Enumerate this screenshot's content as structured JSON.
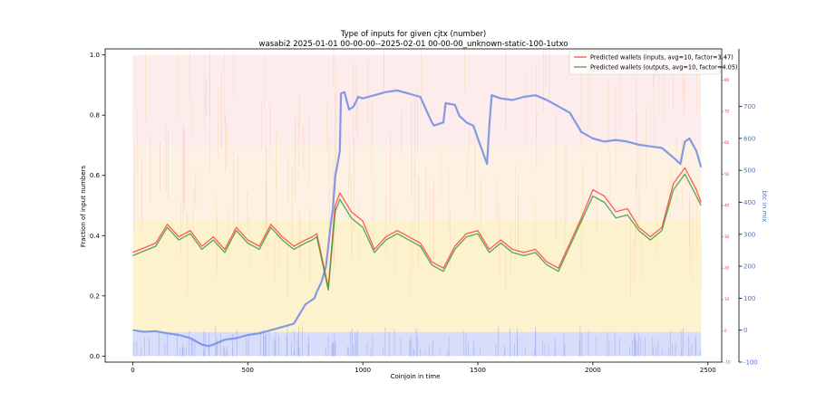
{
  "chart_data": {
    "type": "line",
    "title": "Type of inputs for given cjtx (number)",
    "subtitle": "wasabi2 2025-01-01 00-00-00--2025-02-01 00-00-00_unknown-static-100-1utxo",
    "xlabel": "Coinjoin in time",
    "ylabel_left": "Fraction of input numbers",
    "ylabel_right": "btc in mix",
    "xlim": [
      -120,
      2560
    ],
    "ylim_left": [
      -0.02,
      1.02
    ],
    "ylim_red": [
      -10,
      90
    ],
    "ylim_blue": [
      -100,
      880
    ],
    "x_ticks": [
      "0",
      "500",
      "1000",
      "1500",
      "2000",
      "2500"
    ],
    "x_tick_values": [
      0,
      500,
      1000,
      1500,
      2000,
      2500
    ],
    "y_ticks_left": [
      "0.0",
      "0.2",
      "0.4",
      "0.6",
      "0.8",
      "1.0"
    ],
    "y_tick_values_left": [
      0.0,
      0.2,
      0.4,
      0.6,
      0.8,
      1.0
    ],
    "y_ticks_red": [
      "-10",
      "0",
      "10",
      "20",
      "30",
      "40",
      "50",
      "60",
      "70",
      "80"
    ],
    "y_tick_values_red": [
      -10,
      0,
      10,
      20,
      30,
      40,
      50,
      60,
      70,
      80
    ],
    "y_ticks_blue": [
      "-100",
      "0",
      "100",
      "200",
      "300",
      "400",
      "500",
      "600",
      "700"
    ],
    "y_tick_values_blue": [
      -100,
      0,
      100,
      200,
      300,
      400,
      500,
      600,
      700
    ],
    "legend_position": "top-right",
    "grid": false,
    "series": [
      {
        "name": "Predicted wallets (inputs, avg=10, factor=3.47)",
        "color": "#ff4040",
        "axis": "red",
        "x": [
          0,
          100,
          150,
          200,
          250,
          300,
          350,
          400,
          450,
          500,
          550,
          600,
          650,
          700,
          750,
          780,
          800,
          850,
          880,
          900,
          950,
          1000,
          1050,
          1100,
          1150,
          1200,
          1250,
          1300,
          1350,
          1400,
          1450,
          1500,
          1550,
          1600,
          1650,
          1700,
          1750,
          1800,
          1850,
          1900,
          1950,
          2000,
          2050,
          2100,
          2150,
          2200,
          2250,
          2300,
          2350,
          2380,
          2400,
          2450,
          2470
        ],
        "y": [
          25,
          28,
          34,
          30,
          32,
          27,
          30,
          26,
          33,
          29,
          27,
          34,
          30,
          27,
          29,
          30,
          31,
          14,
          40,
          44,
          38,
          35,
          26,
          30,
          32,
          30,
          28,
          22,
          20,
          27,
          31,
          32,
          26,
          29,
          26,
          25,
          26,
          22,
          20,
          28,
          36,
          45,
          43,
          38,
          39,
          33,
          30,
          33,
          47,
          50,
          52,
          45,
          41
        ]
      },
      {
        "name": "Predicted wallets (outputs, avg=10, factor=4.05)",
        "color": "#3a9a3a",
        "axis": "red",
        "x": [
          0,
          100,
          150,
          200,
          250,
          300,
          350,
          400,
          450,
          500,
          550,
          600,
          650,
          700,
          750,
          780,
          800,
          850,
          880,
          900,
          950,
          1000,
          1050,
          1100,
          1150,
          1200,
          1250,
          1300,
          1350,
          1400,
          1450,
          1500,
          1550,
          1600,
          1650,
          1700,
          1750,
          1800,
          1850,
          1900,
          1950,
          2000,
          2050,
          2100,
          2150,
          2200,
          2250,
          2300,
          2350,
          2380,
          2400,
          2450,
          2470
        ],
        "y": [
          24,
          27,
          33,
          29,
          31,
          26,
          29,
          25,
          32,
          28,
          26,
          33,
          29,
          26,
          28,
          29,
          30,
          13,
          38,
          42,
          36,
          33,
          25,
          29,
          31,
          29,
          27,
          21,
          19,
          26,
          30,
          31,
          25,
          28,
          25,
          24,
          25,
          21,
          19,
          27,
          35,
          43,
          41,
          36,
          37,
          32,
          29,
          32,
          45,
          48,
          50,
          43,
          40
        ]
      },
      {
        "name": "btc in mix",
        "color": "#7d95e6",
        "axis": "blue",
        "x": [
          0,
          50,
          100,
          150,
          200,
          250,
          300,
          330,
          350,
          400,
          450,
          500,
          550,
          600,
          650,
          700,
          750,
          790,
          800,
          820,
          840,
          860,
          870,
          880,
          890,
          900,
          905,
          920,
          940,
          960,
          980,
          1000,
          1050,
          1100,
          1150,
          1200,
          1250,
          1300,
          1310,
          1350,
          1360,
          1400,
          1420,
          1450,
          1480,
          1500,
          1520,
          1540,
          1550,
          1560,
          1600,
          1650,
          1700,
          1750,
          1800,
          1850,
          1900,
          1950,
          2000,
          2050,
          2100,
          2150,
          2200,
          2250,
          2300,
          2350,
          2380,
          2400,
          2420,
          2450,
          2470
        ],
        "y": [
          0,
          -5,
          -3,
          -10,
          -15,
          -25,
          -45,
          -50,
          -45,
          -30,
          -25,
          -15,
          -10,
          0,
          10,
          20,
          80,
          100,
          120,
          150,
          200,
          330,
          380,
          480,
          520,
          560,
          740,
          745,
          690,
          700,
          730,
          725,
          735,
          745,
          750,
          740,
          730,
          650,
          640,
          650,
          710,
          705,
          670,
          650,
          640,
          600,
          560,
          520,
          640,
          735,
          725,
          720,
          730,
          735,
          720,
          700,
          680,
          620,
          600,
          590,
          595,
          590,
          580,
          575,
          570,
          540,
          520,
          590,
          600,
          560,
          510
        ]
      }
    ]
  }
}
